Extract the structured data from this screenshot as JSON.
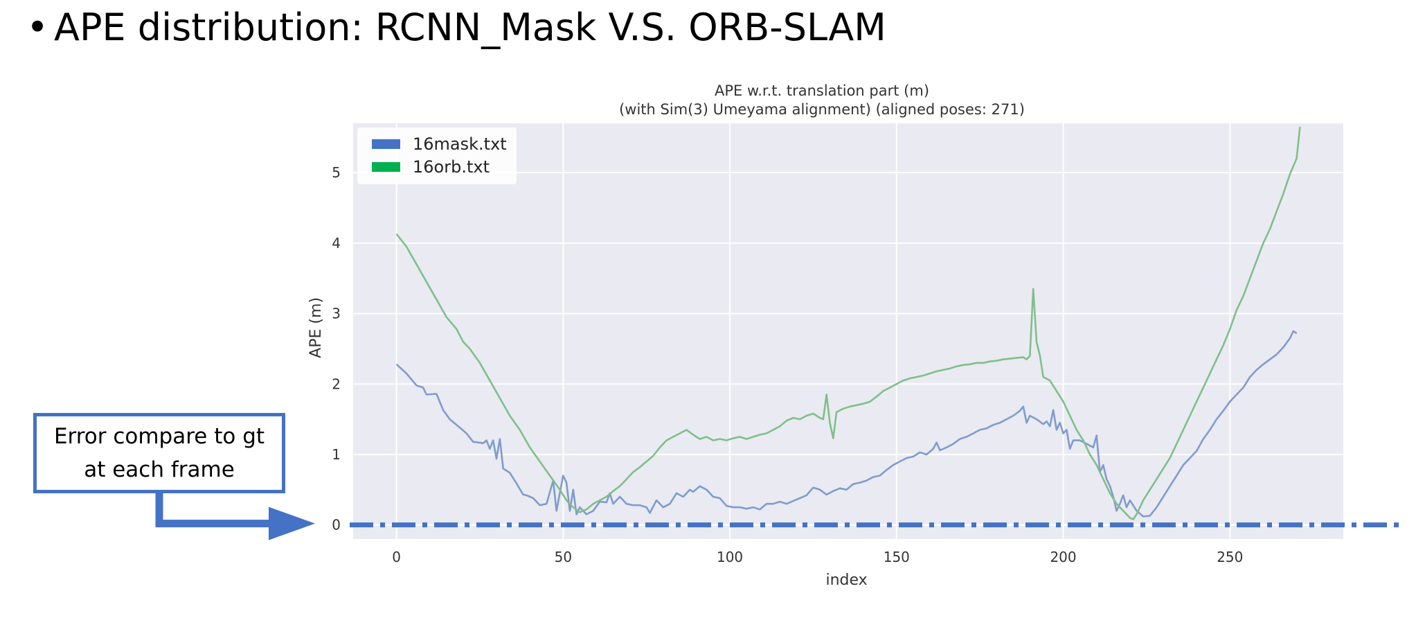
{
  "slide": {
    "bullet": "•",
    "title": "APE distribution: RCNN_Mask V.S.  ORB-SLAM"
  },
  "callout": {
    "text": "Error compare to gt at each frame"
  },
  "colors": {
    "plot_bg": "#eaeaf2",
    "grid": "#ffffff",
    "mask": "#4472c4",
    "orb": "#00b050",
    "mask_line": "#7f9ccc",
    "orb_line": "#7fbf8a",
    "callout": "#4472c4",
    "text": "#333333"
  },
  "chart_data": {
    "type": "line",
    "title": "APE w.r.t. translation part (m)",
    "subtitle": "(with Sim(3) Umeyama alignment) (aligned poses: 271)",
    "xlabel": "index",
    "ylabel": "APE (m)",
    "xlim": [
      -13,
      284
    ],
    "ylim": [
      -0.2,
      5.7
    ],
    "xticks": [
      0,
      50,
      100,
      150,
      200,
      250
    ],
    "yticks": [
      0,
      1,
      2,
      3,
      4,
      5
    ],
    "grid": true,
    "legend_position": "top-left",
    "series": [
      {
        "name": "16mask.txt",
        "points": [
          [
            0,
            2.28
          ],
          [
            3,
            2.15
          ],
          [
            6,
            1.98
          ],
          [
            8,
            1.95
          ],
          [
            9,
            1.85
          ],
          [
            12,
            1.86
          ],
          [
            14,
            1.63
          ],
          [
            16,
            1.5
          ],
          [
            19,
            1.38
          ],
          [
            21,
            1.3
          ],
          [
            23,
            1.18
          ],
          [
            26,
            1.16
          ],
          [
            27,
            1.2
          ],
          [
            28,
            1.08
          ],
          [
            29,
            1.2
          ],
          [
            30,
            0.94
          ],
          [
            31,
            1.22
          ],
          [
            32,
            0.8
          ],
          [
            34,
            0.74
          ],
          [
            36,
            0.59
          ],
          [
            38,
            0.43
          ],
          [
            39,
            0.42
          ],
          [
            41,
            0.38
          ],
          [
            43,
            0.28
          ],
          [
            45,
            0.3
          ],
          [
            47,
            0.63
          ],
          [
            48,
            0.2
          ],
          [
            50,
            0.7
          ],
          [
            51,
            0.6
          ],
          [
            52,
            0.2
          ],
          [
            53,
            0.5
          ],
          [
            54,
            0.15
          ],
          [
            55,
            0.25
          ],
          [
            57,
            0.15
          ],
          [
            59,
            0.2
          ],
          [
            61,
            0.33
          ],
          [
            63,
            0.32
          ],
          [
            64,
            0.45
          ],
          [
            65,
            0.3
          ],
          [
            67,
            0.4
          ],
          [
            69,
            0.3
          ],
          [
            71,
            0.28
          ],
          [
            73,
            0.28
          ],
          [
            75,
            0.25
          ],
          [
            76,
            0.17
          ],
          [
            78,
            0.35
          ],
          [
            80,
            0.25
          ],
          [
            82,
            0.3
          ],
          [
            84,
            0.45
          ],
          [
            86,
            0.4
          ],
          [
            88,
            0.5
          ],
          [
            89,
            0.47
          ],
          [
            91,
            0.55
          ],
          [
            93,
            0.5
          ],
          [
            95,
            0.4
          ],
          [
            97,
            0.38
          ],
          [
            99,
            0.27
          ],
          [
            101,
            0.25
          ],
          [
            103,
            0.25
          ],
          [
            105,
            0.23
          ],
          [
            107,
            0.25
          ],
          [
            109,
            0.22
          ],
          [
            111,
            0.3
          ],
          [
            113,
            0.3
          ],
          [
            115,
            0.33
          ],
          [
            117,
            0.3
          ],
          [
            119,
            0.34
          ],
          [
            121,
            0.38
          ],
          [
            123,
            0.42
          ],
          [
            125,
            0.53
          ],
          [
            127,
            0.5
          ],
          [
            129,
            0.43
          ],
          [
            131,
            0.48
          ],
          [
            133,
            0.52
          ],
          [
            135,
            0.5
          ],
          [
            137,
            0.58
          ],
          [
            139,
            0.6
          ],
          [
            141,
            0.63
          ],
          [
            143,
            0.68
          ],
          [
            145,
            0.7
          ],
          [
            147,
            0.78
          ],
          [
            149,
            0.85
          ],
          [
            151,
            0.9
          ],
          [
            153,
            0.95
          ],
          [
            155,
            0.97
          ],
          [
            157,
            1.03
          ],
          [
            159,
            1.0
          ],
          [
            161,
            1.08
          ],
          [
            162,
            1.17
          ],
          [
            163,
            1.06
          ],
          [
            165,
            1.1
          ],
          [
            167,
            1.15
          ],
          [
            169,
            1.22
          ],
          [
            171,
            1.25
          ],
          [
            173,
            1.3
          ],
          [
            175,
            1.35
          ],
          [
            177,
            1.37
          ],
          [
            179,
            1.42
          ],
          [
            181,
            1.45
          ],
          [
            183,
            1.5
          ],
          [
            185,
            1.55
          ],
          [
            187,
            1.62
          ],
          [
            188,
            1.68
          ],
          [
            189,
            1.45
          ],
          [
            190,
            1.55
          ],
          [
            192,
            1.5
          ],
          [
            194,
            1.43
          ],
          [
            195,
            1.47
          ],
          [
            196,
            1.4
          ],
          [
            197,
            1.63
          ],
          [
            198,
            1.35
          ],
          [
            199,
            1.45
          ],
          [
            200,
            1.3
          ],
          [
            201,
            1.35
          ],
          [
            202,
            1.08
          ],
          [
            203,
            1.2
          ],
          [
            205,
            1.2
          ],
          [
            207,
            1.15
          ],
          [
            209,
            1.1
          ],
          [
            210,
            1.27
          ],
          [
            211,
            0.75
          ],
          [
            212,
            0.85
          ],
          [
            213,
            0.65
          ],
          [
            214,
            0.55
          ],
          [
            215,
            0.4
          ],
          [
            216,
            0.2
          ],
          [
            217,
            0.3
          ],
          [
            218,
            0.42
          ],
          [
            219,
            0.25
          ],
          [
            220,
            0.35
          ],
          [
            222,
            0.2
          ],
          [
            224,
            0.12
          ],
          [
            226,
            0.13
          ],
          [
            228,
            0.25
          ],
          [
            230,
            0.4
          ],
          [
            232,
            0.55
          ],
          [
            234,
            0.7
          ],
          [
            236,
            0.85
          ],
          [
            238,
            0.95
          ],
          [
            240,
            1.05
          ],
          [
            242,
            1.22
          ],
          [
            244,
            1.35
          ],
          [
            246,
            1.5
          ],
          [
            248,
            1.62
          ],
          [
            250,
            1.75
          ],
          [
            252,
            1.85
          ],
          [
            254,
            1.95
          ],
          [
            256,
            2.1
          ],
          [
            258,
            2.2
          ],
          [
            260,
            2.28
          ],
          [
            262,
            2.35
          ],
          [
            264,
            2.42
          ],
          [
            266,
            2.52
          ],
          [
            268,
            2.65
          ],
          [
            269,
            2.75
          ],
          [
            270,
            2.72
          ]
        ]
      },
      {
        "name": "16orb.txt",
        "points": [
          [
            0,
            4.13
          ],
          [
            3,
            3.95
          ],
          [
            6,
            3.7
          ],
          [
            9,
            3.45
          ],
          [
            12,
            3.2
          ],
          [
            15,
            2.95
          ],
          [
            18,
            2.78
          ],
          [
            20,
            2.6
          ],
          [
            22,
            2.5
          ],
          [
            25,
            2.3
          ],
          [
            28,
            2.05
          ],
          [
            31,
            1.8
          ],
          [
            34,
            1.55
          ],
          [
            37,
            1.35
          ],
          [
            40,
            1.1
          ],
          [
            43,
            0.9
          ],
          [
            46,
            0.7
          ],
          [
            49,
            0.5
          ],
          [
            51,
            0.35
          ],
          [
            53,
            0.25
          ],
          [
            55,
            0.18
          ],
          [
            57,
            0.22
          ],
          [
            59,
            0.3
          ],
          [
            61,
            0.35
          ],
          [
            63,
            0.4
          ],
          [
            65,
            0.48
          ],
          [
            67,
            0.55
          ],
          [
            69,
            0.65
          ],
          [
            71,
            0.75
          ],
          [
            73,
            0.82
          ],
          [
            75,
            0.9
          ],
          [
            77,
            0.98
          ],
          [
            79,
            1.1
          ],
          [
            81,
            1.2
          ],
          [
            83,
            1.25
          ],
          [
            85,
            1.3
          ],
          [
            87,
            1.35
          ],
          [
            89,
            1.28
          ],
          [
            91,
            1.22
          ],
          [
            93,
            1.25
          ],
          [
            95,
            1.2
          ],
          [
            97,
            1.22
          ],
          [
            99,
            1.2
          ],
          [
            101,
            1.23
          ],
          [
            103,
            1.25
          ],
          [
            105,
            1.22
          ],
          [
            107,
            1.25
          ],
          [
            109,
            1.28
          ],
          [
            111,
            1.3
          ],
          [
            113,
            1.35
          ],
          [
            115,
            1.4
          ],
          [
            117,
            1.48
          ],
          [
            119,
            1.52
          ],
          [
            121,
            1.5
          ],
          [
            123,
            1.55
          ],
          [
            125,
            1.58
          ],
          [
            127,
            1.52
          ],
          [
            128,
            1.5
          ],
          [
            129,
            1.85
          ],
          [
            130,
            1.45
          ],
          [
            131,
            1.23
          ],
          [
            132,
            1.6
          ],
          [
            134,
            1.65
          ],
          [
            136,
            1.68
          ],
          [
            138,
            1.7
          ],
          [
            140,
            1.72
          ],
          [
            142,
            1.75
          ],
          [
            144,
            1.82
          ],
          [
            146,
            1.9
          ],
          [
            148,
            1.95
          ],
          [
            150,
            2.0
          ],
          [
            152,
            2.05
          ],
          [
            154,
            2.08
          ],
          [
            156,
            2.1
          ],
          [
            158,
            2.12
          ],
          [
            160,
            2.15
          ],
          [
            162,
            2.18
          ],
          [
            164,
            2.2
          ],
          [
            166,
            2.22
          ],
          [
            168,
            2.25
          ],
          [
            170,
            2.27
          ],
          [
            172,
            2.28
          ],
          [
            174,
            2.3
          ],
          [
            176,
            2.3
          ],
          [
            178,
            2.32
          ],
          [
            180,
            2.33
          ],
          [
            182,
            2.35
          ],
          [
            184,
            2.36
          ],
          [
            186,
            2.37
          ],
          [
            188,
            2.38
          ],
          [
            189,
            2.35
          ],
          [
            190,
            2.4
          ],
          [
            191,
            3.35
          ],
          [
            192,
            2.6
          ],
          [
            193,
            2.4
          ],
          [
            194,
            2.1
          ],
          [
            196,
            2.05
          ],
          [
            198,
            1.9
          ],
          [
            200,
            1.75
          ],
          [
            202,
            1.55
          ],
          [
            204,
            1.35
          ],
          [
            206,
            1.2
          ],
          [
            208,
            1.0
          ],
          [
            210,
            0.85
          ],
          [
            212,
            0.65
          ],
          [
            214,
            0.45
          ],
          [
            216,
            0.3
          ],
          [
            218,
            0.2
          ],
          [
            220,
            0.1
          ],
          [
            221,
            0.08
          ],
          [
            222,
            0.15
          ],
          [
            224,
            0.35
          ],
          [
            226,
            0.5
          ],
          [
            228,
            0.65
          ],
          [
            230,
            0.8
          ],
          [
            232,
            0.95
          ],
          [
            234,
            1.15
          ],
          [
            236,
            1.35
          ],
          [
            238,
            1.55
          ],
          [
            240,
            1.75
          ],
          [
            242,
            1.95
          ],
          [
            244,
            2.15
          ],
          [
            246,
            2.35
          ],
          [
            248,
            2.55
          ],
          [
            250,
            2.78
          ],
          [
            252,
            3.05
          ],
          [
            254,
            3.25
          ],
          [
            256,
            3.5
          ],
          [
            258,
            3.75
          ],
          [
            260,
            4.0
          ],
          [
            262,
            4.2
          ],
          [
            264,
            4.45
          ],
          [
            266,
            4.7
          ],
          [
            268,
            4.98
          ],
          [
            270,
            5.2
          ],
          [
            271,
            5.65
          ]
        ]
      }
    ]
  }
}
